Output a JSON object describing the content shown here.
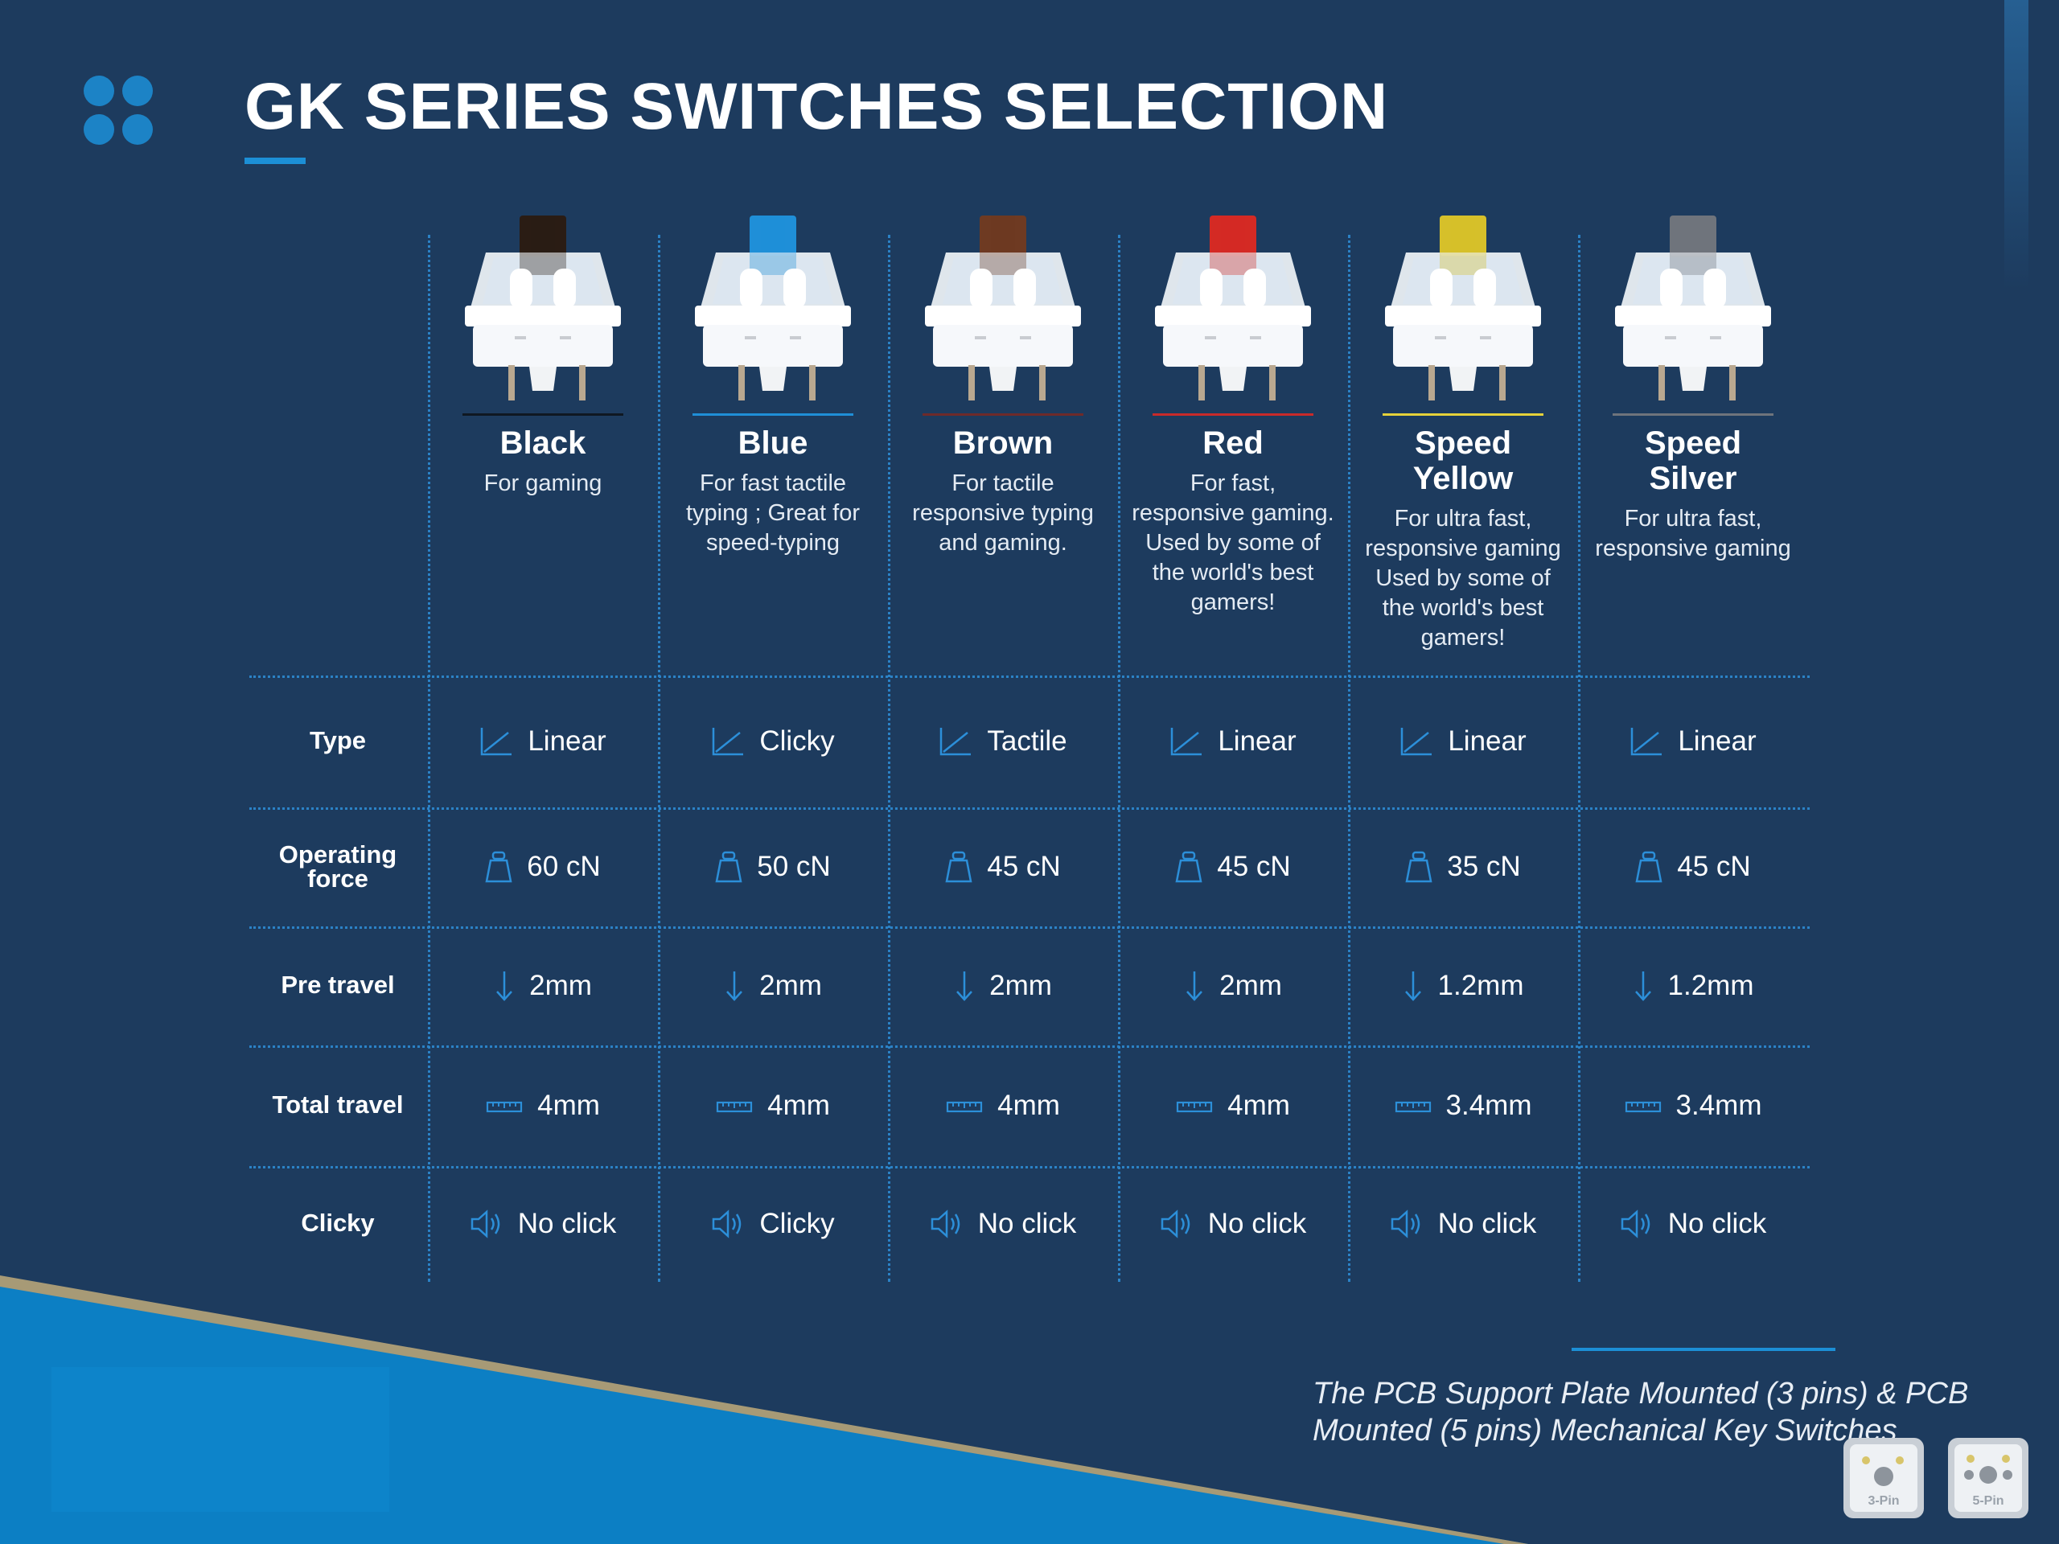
{
  "header": {
    "title": "GK SERIES SWITCHES SELECTION"
  },
  "switches": [
    {
      "name": "Black",
      "desc": "For gaming",
      "stem": "#2a1c14",
      "line": "#0f1822"
    },
    {
      "name": "Blue",
      "desc": "For fast tactile typing ; Great for speed-typing",
      "stem": "#1f8fd8",
      "line": "#1f8fd8"
    },
    {
      "name": "Brown",
      "desc": "For tactile responsive typing and gaming.",
      "stem": "#6e3a22",
      "line": "#6e2a2a"
    },
    {
      "name": "Red",
      "desc": "For fast, responsive gaming. Used by some of the world's best gamers!",
      "stem": "#d42a24",
      "line": "#c92a2a"
    },
    {
      "name": "Speed Yellow",
      "desc": "For ultra fast, responsive gaming Used by some of the world's best gamers!",
      "stem": "#d6c02a",
      "line": "#e6d23a"
    },
    {
      "name": "Speed Silver",
      "desc": "For ultra fast, responsive gaming",
      "stem": "#6f747c",
      "line": "#6f747c"
    }
  ],
  "rows": [
    {
      "label": "Type",
      "icon": "linear-graph-icon",
      "values": [
        "Linear",
        "Clicky",
        "Tactile",
        "Linear",
        "Linear",
        "Linear"
      ]
    },
    {
      "label": "Operating force",
      "icon": "weight-icon",
      "values": [
        "60 cN",
        "50 cN",
        "45 cN",
        "45 cN",
        "35 cN",
        "45 cN"
      ]
    },
    {
      "label": "Pre travel",
      "icon": "arrow-down-icon",
      "values": [
        "2mm",
        "2mm",
        "2mm",
        "2mm",
        "1.2mm",
        "1.2mm"
      ]
    },
    {
      "label": "Total travel",
      "icon": "ruler-icon",
      "values": [
        "4mm",
        "4mm",
        "4mm",
        "4mm",
        "3.4mm",
        "3.4mm"
      ]
    },
    {
      "label": "Clicky",
      "icon": "speaker-icon",
      "values": [
        "No click",
        "Clicky",
        "No click",
        "No click",
        "No click",
        "No click"
      ]
    }
  ],
  "footer": {
    "note": "The PCB Support Plate Mounted (3 pins) & PCB Mounted (5 pins) Mechanical Key Switches"
  },
  "pins": [
    {
      "label": "3-Pin"
    },
    {
      "label": "5-Pin"
    }
  ],
  "colors": {
    "background": "#1d3b5e",
    "accent": "#1c8fd6",
    "bottom_band": "#0c7fc4",
    "gold_stripe": "#a79a76"
  }
}
